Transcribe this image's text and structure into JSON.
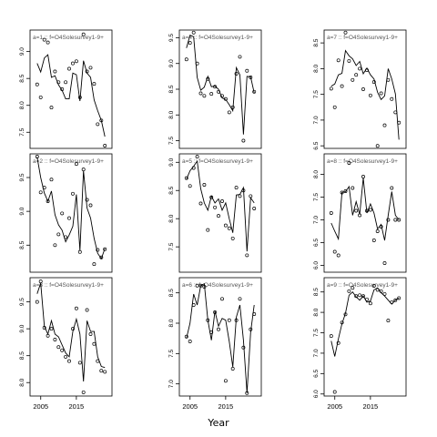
{
  "chart_data": {
    "type": "line",
    "xlabel": "Year",
    "xlim": [
      2002,
      2025
    ],
    "x_ticks": [
      2005,
      2015
    ],
    "x_tick_labels": [
      "2005",
      "2015"
    ],
    "x_values": [
      2004,
      2005,
      2006,
      2007,
      2008,
      2009,
      2010,
      2011,
      2012,
      2013,
      2014,
      2015,
      2016,
      2017,
      2018,
      2019,
      2020,
      2021,
      2022,
      2023
    ],
    "panels": [
      {
        "label": "a=1  ::  f=O4Solesurvey1-9+",
        "ylim": [
          7.2,
          9.4
        ],
        "y_ticks": [
          7.5,
          8.0,
          8.5,
          9.0
        ],
        "y_tick_labels": [
          "7.5",
          "8.0",
          "8.5",
          "9.0"
        ],
        "fitted": [
          8.78,
          8.62,
          8.88,
          8.94,
          8.52,
          8.55,
          8.38,
          8.28,
          8.12,
          8.12,
          8.6,
          8.57,
          8.08,
          8.83,
          8.6,
          8.52,
          8.1,
          7.9,
          7.72,
          7.42
        ],
        "observed": [
          8.39,
          8.15,
          9.22,
          9.17,
          7.96,
          8.63,
          8.43,
          8.3,
          8.43,
          8.68,
          8.78,
          8.82,
          8.15,
          9.32,
          8.63,
          8.7,
          8.4,
          7.65,
          7.72,
          7.25
        ]
      },
      {
        "label": "a=4  ::  f=O4Solesurvey1-9+",
        "ylim": [
          7.35,
          9.65
        ],
        "y_ticks": [
          7.5,
          8.0,
          8.5,
          9.0,
          9.5
        ],
        "y_tick_labels": [
          "7.5",
          "8.0",
          "8.5",
          "9.0",
          "9.5"
        ],
        "fitted": [
          9.3,
          9.55,
          9.52,
          8.73,
          8.48,
          8.54,
          8.75,
          8.55,
          8.56,
          8.5,
          8.33,
          8.3,
          8.2,
          8.08,
          8.92,
          8.78,
          7.62,
          8.75,
          8.74,
          8.43
        ],
        "observed": [
          9.08,
          9.4,
          9.6,
          9.0,
          8.42,
          8.37,
          8.7,
          8.41,
          8.55,
          8.45,
          8.37,
          8.31,
          8.05,
          8.15,
          8.8,
          9.13,
          7.5,
          8.86,
          8.73,
          8.45
        ]
      },
      {
        "label": "a=7  ::  f=O4Solesurvey1-9+",
        "ylim": [
          6.45,
          8.75
        ],
        "y_ticks": [
          6.5,
          7.0,
          7.5,
          8.0,
          8.5
        ],
        "y_tick_labels": [
          "6.5",
          "7.0",
          "7.5",
          "8.0",
          "8.5"
        ],
        "fitted": [
          7.66,
          7.7,
          7.88,
          7.91,
          8.35,
          8.25,
          8.19,
          8.06,
          8.14,
          7.9,
          8.01,
          7.88,
          7.8,
          7.54,
          7.4,
          7.47,
          8.0,
          7.8,
          7.51,
          6.62
        ],
        "observed": [
          7.61,
          7.25,
          8.16,
          7.66,
          8.7,
          8.15,
          7.78,
          7.88,
          8.0,
          7.6,
          7.97,
          7.48,
          7.74,
          6.5,
          7.52,
          6.9,
          7.78,
          7.41,
          7.15,
          6.95
        ]
      },
      {
        "label": "a=2  ::  f=O4Solesurvey1-9+",
        "ylim": [
          8.1,
          9.85
        ],
        "y_ticks": [
          8.5,
          9.0,
          9.5
        ],
        "y_tick_labels": [
          "8.5",
          "9.0",
          "9.5"
        ],
        "fitted": [
          9.8,
          9.5,
          9.27,
          9.15,
          9.3,
          8.95,
          8.8,
          8.72,
          8.55,
          8.65,
          8.78,
          9.25,
          8.42,
          9.6,
          9.05,
          8.9,
          8.6,
          8.38,
          8.3,
          8.45
        ],
        "observed": [
          9.81,
          9.28,
          9.35,
          9.15,
          9.47,
          8.5,
          8.66,
          8.97,
          8.62,
          8.9,
          9.26,
          9.7,
          8.4,
          9.62,
          9.17,
          9.09,
          8.22,
          8.43,
          8.32,
          8.44
        ]
      },
      {
        "label": "a=5  ::  f=O4Solesurvey1-9+",
        "ylim": [
          7.05,
          9.15
        ],
        "y_ticks": [
          7.5,
          8.0,
          8.5,
          9.0
        ],
        "y_tick_labels": [
          "7.5",
          "8.0",
          "8.5",
          "9.0"
        ],
        "fitted": [
          8.7,
          8.85,
          8.93,
          9.02,
          8.53,
          8.28,
          8.15,
          8.4,
          8.28,
          8.35,
          8.15,
          8.28,
          8.0,
          7.75,
          8.42,
          8.43,
          8.55,
          7.42,
          8.37,
          8.28
        ],
        "observed": [
          8.72,
          8.58,
          8.9,
          9.1,
          8.27,
          8.6,
          7.8,
          8.38,
          8.2,
          8.05,
          8.31,
          7.88,
          7.83,
          7.65,
          8.55,
          8.4,
          8.5,
          7.35,
          8.4,
          8.18
        ]
      },
      {
        "label": "a=8  ::  f=O4Solesurvey1-9+",
        "ylim": [
          5.85,
          8.45
        ],
        "y_ticks": [
          6.0,
          6.5,
          7.0,
          7.5,
          8.0
        ],
        "y_tick_labels": [
          "6.0",
          "6.5",
          "7.0",
          "7.5",
          "8.0"
        ],
        "fitted": [
          6.93,
          6.75,
          6.58,
          7.6,
          7.62,
          7.73,
          7.1,
          7.4,
          7.12,
          7.92,
          7.15,
          7.35,
          7.15,
          6.8,
          6.9,
          6.55,
          7.1,
          7.62,
          7.1,
          7.0
        ],
        "observed": [
          7.15,
          6.3,
          6.22,
          7.6,
          7.63,
          8.25,
          7.7,
          7.2,
          7.1,
          7.95,
          7.2,
          7.22,
          6.55,
          6.75,
          6.85,
          6.05,
          7.0,
          7.7,
          7.0,
          7.0
        ]
      },
      {
        "label": "a=3  ::  f=O4Solesurvey1-9+",
        "ylim": [
          7.75,
          9.95
        ],
        "y_ticks": [
          8.0,
          8.5,
          9.0,
          9.5
        ],
        "y_tick_labels": [
          "8.0",
          "8.5",
          "9.0",
          "9.5"
        ],
        "fitted": [
          9.65,
          9.85,
          9.05,
          8.9,
          9.15,
          8.9,
          8.85,
          8.7,
          8.55,
          8.48,
          8.95,
          9.18,
          8.9,
          8.02,
          9.15,
          8.95,
          8.95,
          8.48,
          8.3,
          8.28
        ],
        "observed": [
          9.5,
          9.88,
          9.02,
          8.87,
          9.0,
          8.8,
          8.66,
          8.6,
          8.48,
          8.4,
          9.0,
          9.38,
          8.37,
          7.82,
          9.35,
          8.9,
          8.72,
          8.4,
          8.22,
          8.2
        ]
      },
      {
        "label": "a=6  ::  f=O4Solesurvey1-9+",
        "ylim": [
          6.8,
          8.75
        ],
        "y_ticks": [
          7.0,
          7.5,
          8.0,
          8.5
        ],
        "y_tick_labels": [
          "7.0",
          "7.5",
          "8.0",
          "8.5"
        ],
        "fitted": [
          7.75,
          8.0,
          8.48,
          8.3,
          8.62,
          8.65,
          8.05,
          7.72,
          8.2,
          7.95,
          8.08,
          8.05,
          7.7,
          7.28,
          8.1,
          8.3,
          7.72,
          6.85,
          7.85,
          8.3
        ],
        "observed": [
          7.78,
          7.7,
          8.3,
          8.62,
          8.62,
          8.6,
          8.05,
          7.85,
          8.18,
          7.9,
          8.4,
          7.05,
          8.05,
          7.25,
          8.05,
          8.4,
          7.6,
          6.85,
          7.9,
          8.15
        ]
      },
      {
        "label": "a=9  ::  f=O4Solesurvey1-9+",
        "ylim": [
          5.95,
          8.85
        ],
        "y_ticks": [
          6.0,
          6.5,
          7.0,
          7.5,
          8.0,
          8.5
        ],
        "y_tick_labels": [
          "6.0",
          "6.5",
          "7.0",
          "7.5",
          "8.0",
          "8.5"
        ],
        "fitted": [
          7.3,
          6.92,
          7.35,
          7.72,
          7.98,
          8.42,
          8.5,
          8.38,
          8.3,
          8.4,
          8.25,
          8.28,
          8.55,
          8.6,
          8.48,
          8.4,
          8.3,
          8.2,
          8.3,
          8.35
        ],
        "observed": [
          7.42,
          6.05,
          7.25,
          7.75,
          7.95,
          8.52,
          8.6,
          8.4,
          8.42,
          8.4,
          8.32,
          8.22,
          8.65,
          8.55,
          8.52,
          8.45,
          7.8,
          8.25,
          8.3,
          8.35
        ]
      }
    ]
  }
}
